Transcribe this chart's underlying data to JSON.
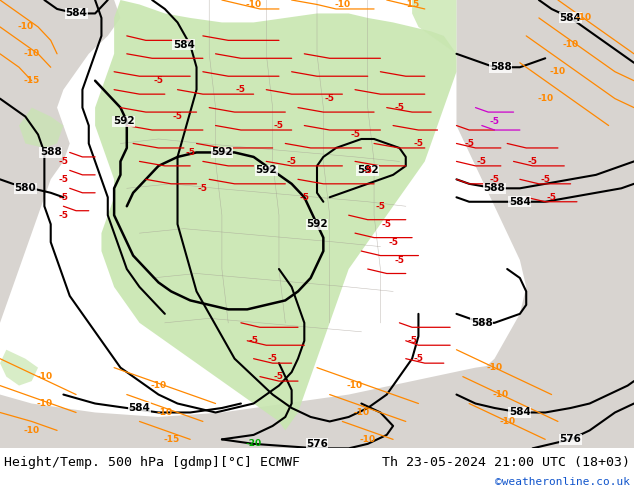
{
  "title_left": "Height/Temp. 500 hPa [gdmp][°C] ECMWF",
  "title_right": "Th 23-05-2024 21:00 UTC (18+03)",
  "credit": "©weatheronline.co.uk",
  "bg_color": "#ffffff",
  "map_bg": "#d8d4d0",
  "green_fill": "#c8e6b0",
  "gray_ocean": "#c8c4c0",
  "gray_land": "#d8d4d0",
  "figsize": [
    6.34,
    4.9
  ],
  "dpi": 100,
  "font_size_title": 9.5,
  "font_size_credit": 8,
  "font_size_labels": 7.5,
  "contour_lw": 1.5,
  "temp_lw": 1.0
}
